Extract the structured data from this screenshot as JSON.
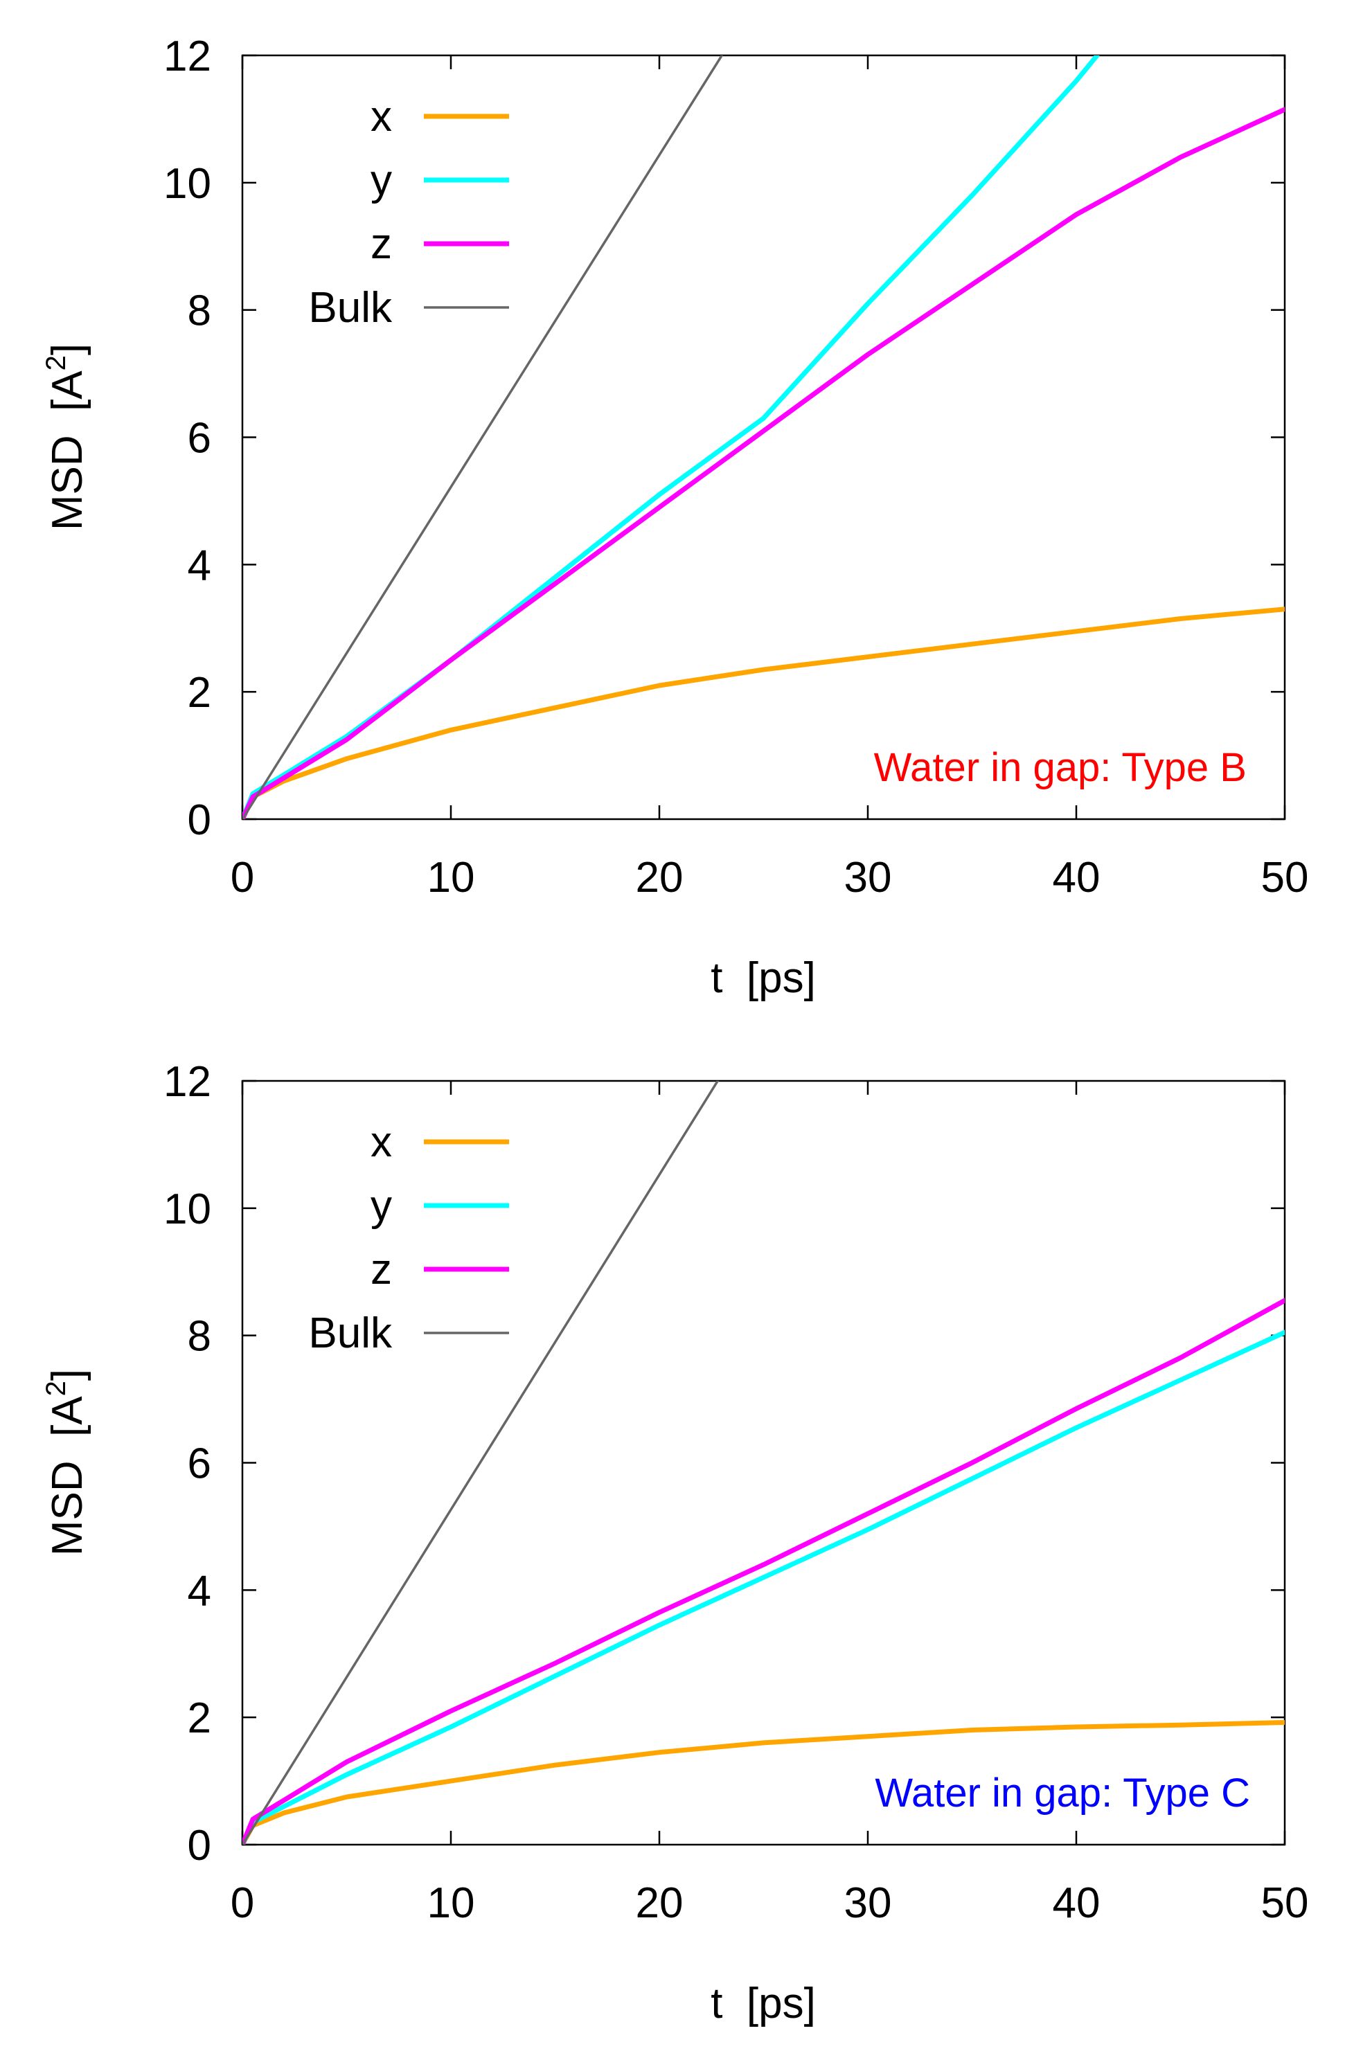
{
  "charts": [
    {
      "annotation": "Water in gap: Type B",
      "annotation_color": "#ff0000",
      "xlabel": "t  [ps]",
      "ylabel": "MSD  [A",
      "ylabel_sup": "2",
      "ylabel_close": "]",
      "x_ticks": [
        "0",
        "10",
        "20",
        "30",
        "40",
        "50"
      ],
      "y_ticks": [
        "0",
        "2",
        "4",
        "6",
        "8",
        "10",
        "12"
      ]
    },
    {
      "annotation": "Water in gap: Type C",
      "annotation_color": "#0000ff",
      "xlabel": "t  [ps]",
      "ylabel": "MSD  [A",
      "ylabel_sup": "2",
      "ylabel_close": "]",
      "x_ticks": [
        "0",
        "10",
        "20",
        "30",
        "40",
        "50"
      ],
      "y_ticks": [
        "0",
        "2",
        "4",
        "6",
        "8",
        "10",
        "12"
      ]
    }
  ],
  "chart_data": [
    {
      "type": "line",
      "xlim": [
        0,
        50
      ],
      "ylim": [
        0,
        12
      ],
      "grid": false,
      "legend_position": "top-left",
      "annotation": "Water in gap: Type B",
      "xlabel": "t  [ps]",
      "ylabel": "MSD  [A2]",
      "series": [
        {
          "name": "x",
          "color": "#ffa500",
          "x": [
            0,
            0.5,
            2,
            5,
            10,
            15,
            20,
            25,
            30,
            35,
            40,
            45,
            50
          ],
          "y": [
            0,
            0.35,
            0.6,
            0.95,
            1.4,
            1.75,
            2.1,
            2.35,
            2.55,
            2.75,
            2.95,
            3.15,
            3.3
          ]
        },
        {
          "name": "y",
          "color": "#00ffff",
          "x": [
            0,
            0.5,
            2,
            5,
            10,
            15,
            20,
            25,
            30,
            35,
            40,
            41
          ],
          "y": [
            0,
            0.4,
            0.7,
            1.3,
            2.5,
            3.8,
            5.1,
            6.3,
            8.1,
            9.8,
            11.6,
            12
          ]
        },
        {
          "name": "z",
          "color": "#ff00ff",
          "x": [
            0,
            0.5,
            2,
            5,
            10,
            15,
            20,
            25,
            30,
            35,
            40,
            45,
            50
          ],
          "y": [
            0,
            0.35,
            0.65,
            1.25,
            2.5,
            3.7,
            4.9,
            6.1,
            7.3,
            8.4,
            9.5,
            10.4,
            11.15
          ]
        },
        {
          "name": "Bulk",
          "color": "#666666",
          "x": [
            0,
            23
          ],
          "y": [
            0,
            12
          ]
        }
      ]
    },
    {
      "type": "line",
      "xlim": [
        0,
        50
      ],
      "ylim": [
        0,
        12
      ],
      "grid": false,
      "legend_position": "top-left",
      "annotation": "Water in gap: Type C",
      "xlabel": "t  [ps]",
      "ylabel": "MSD  [A2]",
      "series": [
        {
          "name": "x",
          "color": "#ffa500",
          "x": [
            0,
            0.5,
            2,
            5,
            10,
            15,
            20,
            25,
            30,
            35,
            40,
            45,
            50
          ],
          "y": [
            0,
            0.3,
            0.5,
            0.75,
            1.0,
            1.25,
            1.45,
            1.6,
            1.7,
            1.8,
            1.85,
            1.88,
            1.92
          ]
        },
        {
          "name": "y",
          "color": "#00ffff",
          "x": [
            0,
            0.5,
            2,
            5,
            10,
            15,
            20,
            25,
            30,
            35,
            40,
            45,
            50
          ],
          "y": [
            0,
            0.35,
            0.6,
            1.1,
            1.85,
            2.65,
            3.45,
            4.2,
            4.95,
            5.75,
            6.55,
            7.3,
            8.05
          ]
        },
        {
          "name": "z",
          "color": "#ff00ff",
          "x": [
            0,
            0.5,
            2,
            5,
            10,
            15,
            20,
            25,
            30,
            35,
            40,
            45,
            50
          ],
          "y": [
            0,
            0.4,
            0.7,
            1.3,
            2.1,
            2.85,
            3.65,
            4.4,
            5.2,
            6.0,
            6.85,
            7.65,
            8.55
          ]
        },
        {
          "name": "Bulk",
          "color": "#666666",
          "x": [
            0,
            22.8
          ],
          "y": [
            0,
            12
          ]
        }
      ]
    }
  ]
}
